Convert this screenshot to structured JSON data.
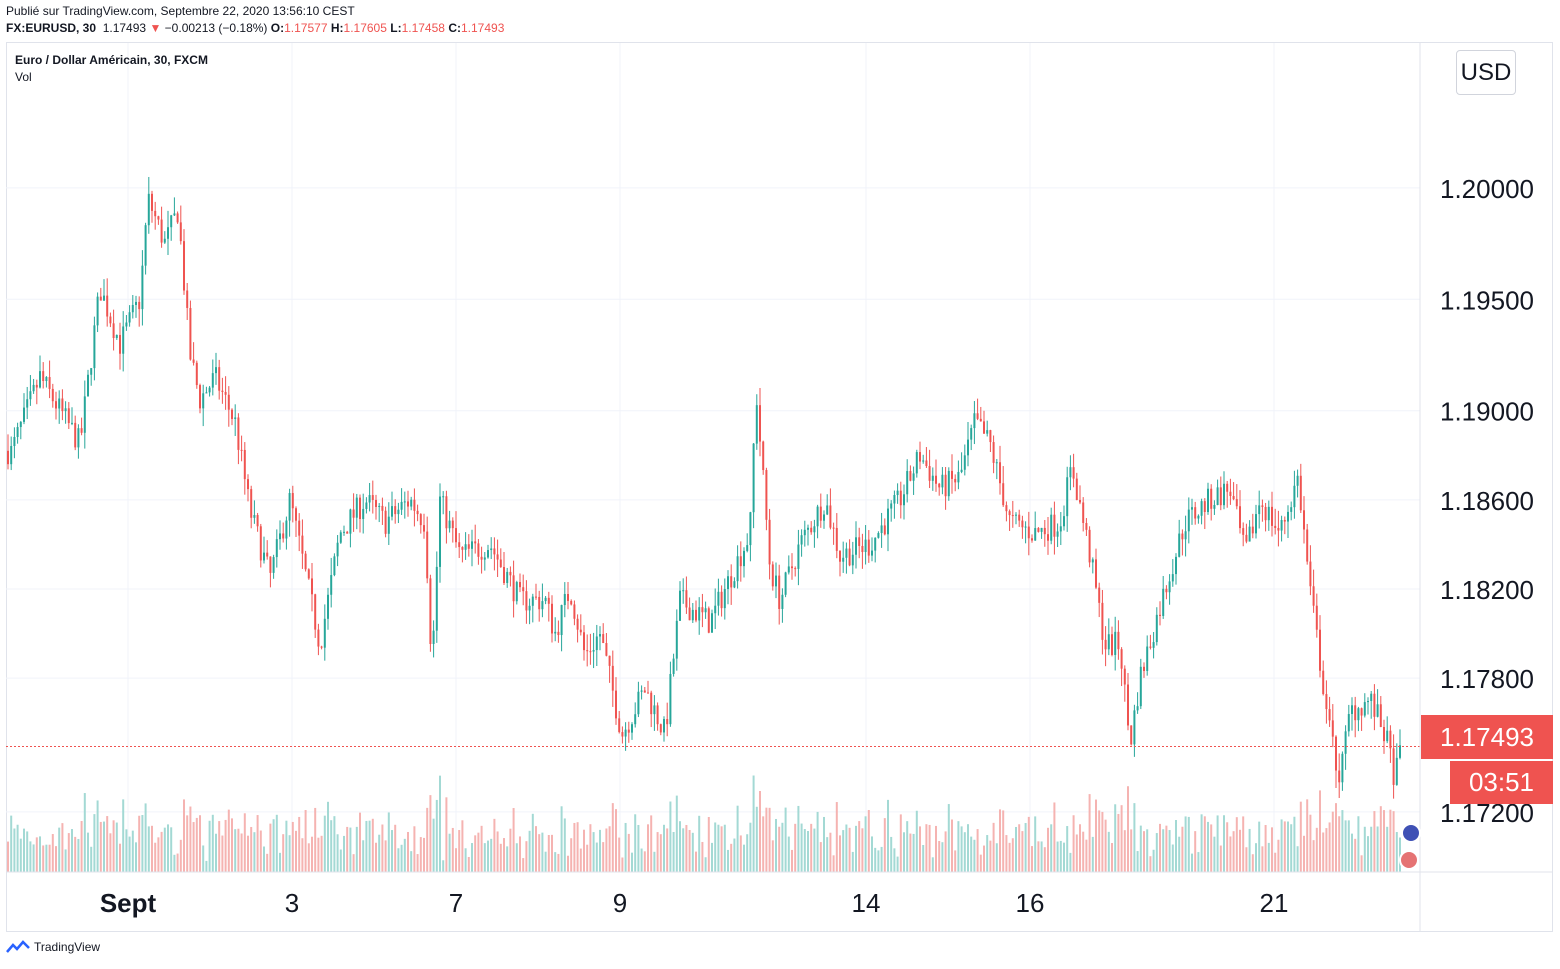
{
  "header": {
    "published": "Publié sur TradingView.com, Septembre 22, 2020 13:56:10 CEST",
    "symbol": "FX:EURUSD, 30",
    "last": "1.17493",
    "change_arrow": "▼",
    "change": "−0.00213 (−0.18%)",
    "o_label": "O:",
    "o_value": "1.17577",
    "h_label": "H:",
    "h_value": "1.17605",
    "l_label": "L:",
    "l_value": "1.17458",
    "c_label": "C:",
    "c_value": "1.17493"
  },
  "legend": {
    "title": "Euro / Dollar Américain, 30, FXCM",
    "volume": "Vol"
  },
  "currency_button": "USD",
  "price_tag": "1.17493",
  "countdown_tag": "03:51",
  "footer": {
    "brand": "TradingView"
  },
  "colors": {
    "up": "#26a69a",
    "down": "#ef5350",
    "vol_up": "#a3d9d4",
    "vol_down": "#f5b3b1",
    "grid": "#f0f3fa"
  },
  "chart_data": {
    "type": "candlestick",
    "series": [
      {
        "name": "EURUSD 30m",
        "anchors": [
          [
            0,
            1.189
          ],
          [
            10,
            1.188
          ],
          [
            40,
            1.1915
          ],
          [
            80,
            1.1885
          ],
          [
            100,
            1.1955
          ],
          [
            120,
            1.193
          ],
          [
            140,
            1.195
          ],
          [
            148,
            1.1995
          ],
          [
            165,
            1.1975
          ],
          [
            178,
            1.199
          ],
          [
            190,
            1.1925
          ],
          [
            200,
            1.1905
          ],
          [
            215,
            1.1915
          ],
          [
            235,
            1.1895
          ],
          [
            250,
            1.1855
          ],
          [
            270,
            1.1825
          ],
          [
            290,
            1.186
          ],
          [
            320,
            1.1795
          ],
          [
            340,
            1.1845
          ],
          [
            365,
            1.186
          ],
          [
            385,
            1.185
          ],
          [
            410,
            1.186
          ],
          [
            425,
            1.185
          ],
          [
            432,
            1.1785
          ],
          [
            440,
            1.186
          ],
          [
            460,
            1.1835
          ],
          [
            490,
            1.184
          ],
          [
            520,
            1.1815
          ],
          [
            545,
            1.1815
          ],
          [
            555,
            1.18
          ],
          [
            570,
            1.182
          ],
          [
            585,
            1.179
          ],
          [
            600,
            1.18
          ],
          [
            622,
            1.1755
          ],
          [
            645,
            1.1775
          ],
          [
            665,
            1.1755
          ],
          [
            680,
            1.1815
          ],
          [
            710,
            1.1805
          ],
          [
            750,
            1.1845
          ],
          [
            756,
            1.191
          ],
          [
            770,
            1.183
          ],
          [
            780,
            1.1815
          ],
          [
            800,
            1.184
          ],
          [
            825,
            1.186
          ],
          [
            840,
            1.1835
          ],
          [
            870,
            1.184
          ],
          [
            900,
            1.186
          ],
          [
            920,
            1.188
          ],
          [
            940,
            1.1865
          ],
          [
            960,
            1.187
          ],
          [
            975,
            1.1895
          ],
          [
            990,
            1.1885
          ],
          [
            1010,
            1.185
          ],
          [
            1035,
            1.1845
          ],
          [
            1060,
            1.185
          ],
          [
            1072,
            1.1875
          ],
          [
            1090,
            1.1835
          ],
          [
            1105,
            1.1795
          ],
          [
            1120,
            1.1795
          ],
          [
            1130,
            1.175
          ],
          [
            1140,
            1.178
          ],
          [
            1165,
            1.182
          ],
          [
            1185,
            1.185
          ],
          [
            1210,
            1.186
          ],
          [
            1230,
            1.1865
          ],
          [
            1245,
            1.1835
          ],
          [
            1260,
            1.186
          ],
          [
            1280,
            1.1845
          ],
          [
            1298,
            1.187
          ],
          [
            1310,
            1.182
          ],
          [
            1330,
            1.1755
          ],
          [
            1340,
            1.1735
          ],
          [
            1350,
            1.1765
          ],
          [
            1370,
            1.177
          ],
          [
            1385,
            1.1755
          ],
          [
            1395,
            1.1735
          ],
          [
            1402,
            1.175
          ]
        ]
      }
    ],
    "x_ticks": [
      "Sept",
      "3",
      "7",
      "9",
      "14",
      "16",
      "21"
    ],
    "y_ticks": [
      "1.20000",
      "1.19500",
      "1.19000",
      "1.18600",
      "1.18200",
      "1.17800",
      "1.17200"
    ],
    "y_tick_values": [
      1.2,
      1.195,
      1.19,
      1.186,
      1.182,
      1.178,
      1.172
    ],
    "ylim": [
      1.1693,
      1.2065
    ],
    "last_price": 1.17493,
    "volume": {
      "name": "Vol"
    },
    "grid": true
  }
}
